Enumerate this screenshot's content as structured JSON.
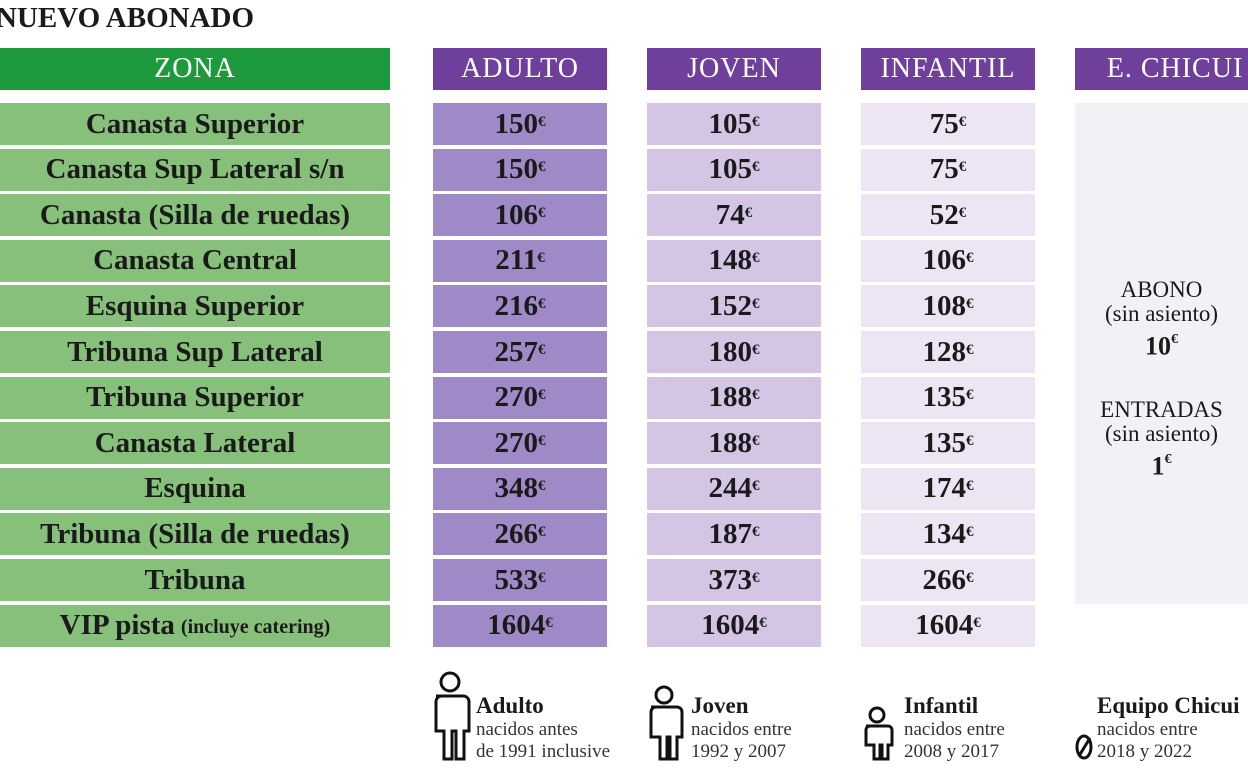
{
  "title": "NUEVO ABONADO",
  "currency": "€",
  "table": {
    "headers": [
      "ZONA",
      "ADULTO",
      "JOVEN",
      "INFANTIL",
      "E. CHICUI"
    ],
    "rows": [
      {
        "zona": "Canasta Superior",
        "prices": [
          150,
          105,
          75
        ]
      },
      {
        "zona": "Canasta Sup Lateral s/n",
        "prices": [
          150,
          105,
          75
        ]
      },
      {
        "zona": "Canasta (Silla de ruedas)",
        "prices": [
          106,
          74,
          52
        ]
      },
      {
        "zona": "Canasta Central",
        "prices": [
          211,
          148,
          106
        ]
      },
      {
        "zona": "Esquina Superior",
        "prices": [
          216,
          152,
          108
        ]
      },
      {
        "zona": "Tribuna Sup Lateral",
        "prices": [
          257,
          180,
          128
        ]
      },
      {
        "zona": "Tribuna Superior",
        "prices": [
          270,
          188,
          135
        ]
      },
      {
        "zona": "Canasta Lateral",
        "prices": [
          270,
          188,
          135
        ]
      },
      {
        "zona": "Esquina",
        "prices": [
          348,
          244,
          174
        ]
      },
      {
        "zona": "Tribuna (Silla de ruedas)",
        "prices": [
          266,
          187,
          134
        ]
      },
      {
        "zona": "Tribuna",
        "prices": [
          533,
          373,
          266
        ]
      },
      {
        "zona": "VIP pista",
        "note": "(incluye catering)",
        "prices": [
          1604,
          1604,
          1604
        ]
      }
    ]
  },
  "chicui": [
    {
      "label": "ABONO",
      "note": "(sin asiento)",
      "price": 10
    },
    {
      "label": "ENTRADAS",
      "note": "(sin asiento)",
      "price": 1
    }
  ],
  "legend": [
    {
      "name": "Adulto",
      "lines": [
        "nacidos antes",
        "de 1991 inclusive"
      ]
    },
    {
      "name": "Joven",
      "lines": [
        "nacidos entre",
        "1992 y 2007"
      ]
    },
    {
      "name": "Infantil",
      "lines": [
        "nacidos entre",
        "2008 y 2017"
      ]
    },
    {
      "name": "Equipo Chicui",
      "lines": [
        "nacidos entre",
        "2018 y 2022"
      ]
    }
  ]
}
